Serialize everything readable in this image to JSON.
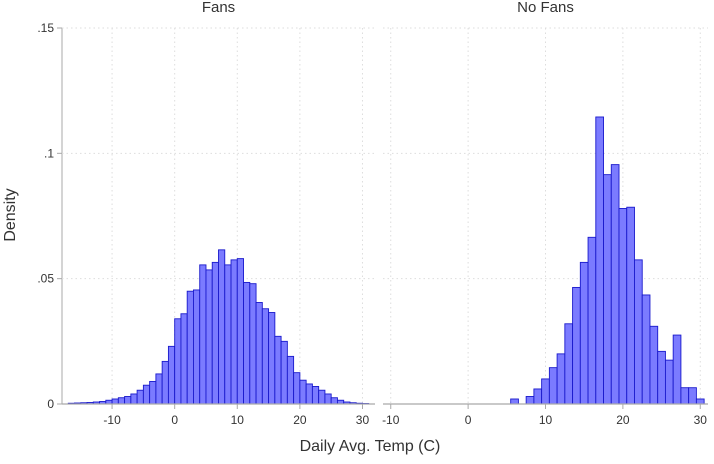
{
  "chart_data": {
    "type": "bar",
    "subtype": "histogram",
    "xlabel": "Daily Avg. Temp (C)",
    "ylabel": "Density",
    "ylim": [
      0,
      0.15
    ],
    "y_ticks": [
      0,
      0.05,
      0.1,
      0.15
    ],
    "y_tick_labels": [
      "0",
      ".05",
      ".1",
      ".15"
    ],
    "bin_width": 1.0,
    "grid": true,
    "colors": {
      "bar_fill": "#7b7bff",
      "bar_edge": "#1a1acc",
      "grid": "#dddddd",
      "baseline": "#a9a9a9"
    },
    "panels": [
      {
        "title": "Fans",
        "xlim": [
          -18,
          32
        ],
        "x_ticks": [
          -10,
          0,
          10,
          20,
          30
        ],
        "x_tick_labels": [
          "-10",
          "0",
          "10",
          "20",
          "30"
        ],
        "bins": [
          {
            "x0": -17,
            "density": 0.0003
          },
          {
            "x0": -16,
            "density": 0.0004
          },
          {
            "x0": -15,
            "density": 0.0005
          },
          {
            "x0": -14,
            "density": 0.0006
          },
          {
            "x0": -13,
            "density": 0.0008
          },
          {
            "x0": -12,
            "density": 0.001
          },
          {
            "x0": -11,
            "density": 0.0015
          },
          {
            "x0": -10,
            "density": 0.002
          },
          {
            "x0": -9,
            "density": 0.0025
          },
          {
            "x0": -8,
            "density": 0.003
          },
          {
            "x0": -7,
            "density": 0.004
          },
          {
            "x0": -6,
            "density": 0.0055
          },
          {
            "x0": -5,
            "density": 0.0075
          },
          {
            "x0": -4,
            "density": 0.009
          },
          {
            "x0": -3,
            "density": 0.012
          },
          {
            "x0": -2,
            "density": 0.017
          },
          {
            "x0": -1,
            "density": 0.023
          },
          {
            "x0": 0,
            "density": 0.034
          },
          {
            "x0": 1,
            "density": 0.036
          },
          {
            "x0": 2,
            "density": 0.045
          },
          {
            "x0": 3,
            "density": 0.0455
          },
          {
            "x0": 4,
            "density": 0.0555
          },
          {
            "x0": 5,
            "density": 0.0535
          },
          {
            "x0": 6,
            "density": 0.0565
          },
          {
            "x0": 7,
            "density": 0.0615
          },
          {
            "x0": 8,
            "density": 0.0555
          },
          {
            "x0": 9,
            "density": 0.0575
          },
          {
            "x0": 10,
            "density": 0.058
          },
          {
            "x0": 11,
            "density": 0.0485
          },
          {
            "x0": 12,
            "density": 0.048
          },
          {
            "x0": 13,
            "density": 0.0405
          },
          {
            "x0": 14,
            "density": 0.038
          },
          {
            "x0": 15,
            "density": 0.0365
          },
          {
            "x0": 16,
            "density": 0.027
          },
          {
            "x0": 17,
            "density": 0.025
          },
          {
            "x0": 18,
            "density": 0.019
          },
          {
            "x0": 19,
            "density": 0.0125
          },
          {
            "x0": 20,
            "density": 0.0095
          },
          {
            "x0": 21,
            "density": 0.008
          },
          {
            "x0": 22,
            "density": 0.007
          },
          {
            "x0": 23,
            "density": 0.0055
          },
          {
            "x0": 24,
            "density": 0.004
          },
          {
            "x0": 25,
            "density": 0.0025
          },
          {
            "x0": 26,
            "density": 0.0015
          },
          {
            "x0": 27,
            "density": 0.0008
          },
          {
            "x0": 28,
            "density": 0.0005
          },
          {
            "x0": 29,
            "density": 0.0003
          },
          {
            "x0": 30,
            "density": 0.0002
          }
        ]
      },
      {
        "title": "No Fans",
        "xlim": [
          -11,
          31
        ],
        "x_ticks": [
          -10,
          0,
          10,
          20,
          30
        ],
        "x_tick_labels": [
          "-10",
          "0",
          "10",
          "20",
          "30"
        ],
        "bins": [
          {
            "x0": -10.5,
            "density": 0.0
          },
          {
            "x0": -9.5,
            "density": 0.0
          },
          {
            "x0": -8.5,
            "density": 0.0
          },
          {
            "x0": -7.5,
            "density": 0.0
          },
          {
            "x0": -6.5,
            "density": 0.0
          },
          {
            "x0": -5.5,
            "density": 0.0
          },
          {
            "x0": -4.5,
            "density": 0.0
          },
          {
            "x0": -3.5,
            "density": 0.0
          },
          {
            "x0": -2.5,
            "density": 0.0
          },
          {
            "x0": -1.5,
            "density": 0.0
          },
          {
            "x0": -0.5,
            "density": 0.0
          },
          {
            "x0": 0.5,
            "density": 0.0
          },
          {
            "x0": 1.5,
            "density": 0.0
          },
          {
            "x0": 2.5,
            "density": 0.0
          },
          {
            "x0": 3.5,
            "density": 0.0
          },
          {
            "x0": 4.5,
            "density": 0.0
          },
          {
            "x0": 5.5,
            "density": 0.002
          },
          {
            "x0": 6.5,
            "density": 0.0
          },
          {
            "x0": 7.5,
            "density": 0.003
          },
          {
            "x0": 8.5,
            "density": 0.006
          },
          {
            "x0": 9.5,
            "density": 0.01
          },
          {
            "x0": 10.5,
            "density": 0.0145
          },
          {
            "x0": 11.5,
            "density": 0.02
          },
          {
            "x0": 12.5,
            "density": 0.032
          },
          {
            "x0": 13.5,
            "density": 0.0465
          },
          {
            "x0": 14.5,
            "density": 0.0565
          },
          {
            "x0": 15.5,
            "density": 0.0665
          },
          {
            "x0": 16.5,
            "density": 0.1145
          },
          {
            "x0": 17.5,
            "density": 0.0915
          },
          {
            "x0": 18.5,
            "density": 0.0955
          },
          {
            "x0": 19.5,
            "density": 0.078
          },
          {
            "x0": 20.5,
            "density": 0.0785
          },
          {
            "x0": 21.5,
            "density": 0.0575
          },
          {
            "x0": 22.5,
            "density": 0.0435
          },
          {
            "x0": 23.5,
            "density": 0.031
          },
          {
            "x0": 24.5,
            "density": 0.021
          },
          {
            "x0": 25.5,
            "density": 0.0175
          },
          {
            "x0": 26.5,
            "density": 0.0275
          },
          {
            "x0": 27.5,
            "density": 0.0065
          },
          {
            "x0": 28.5,
            "density": 0.0065
          },
          {
            "x0": 29.5,
            "density": 0.002
          }
        ]
      }
    ]
  }
}
